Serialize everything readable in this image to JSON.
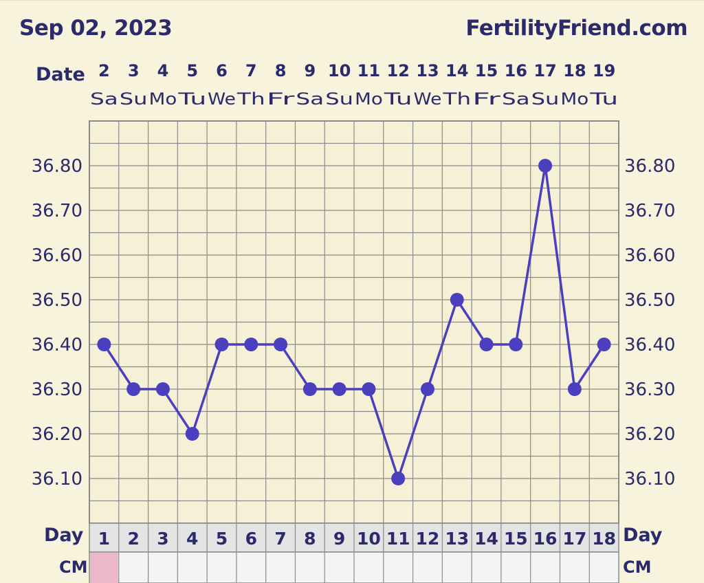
{
  "header": {
    "date": "Sep 02, 2023",
    "site": "FertilityFriend.com"
  },
  "labels": {
    "date_row": "Date",
    "day_row_left": "Day",
    "day_row_right": "Day",
    "cm_row_left": "CM",
    "cm_row_right": "CM"
  },
  "colors": {
    "background": "#f7f3dc",
    "grid": "#8a8a8a",
    "line": "#4a3fbf",
    "text": "#2b2a6b",
    "day_cell": "#e4e4e4",
    "cm_cell": "#f4f4f4",
    "cm_highlight": "#eab8c8"
  },
  "chart_data": {
    "type": "line",
    "dates": [
      "2",
      "3",
      "4",
      "5",
      "6",
      "7",
      "8",
      "9",
      "10",
      "11",
      "12",
      "13",
      "14",
      "15",
      "16",
      "17",
      "18",
      "19"
    ],
    "weekdays": [
      "Sa",
      "Su",
      "Mo",
      "Tu",
      "We",
      "Th",
      "Fr",
      "Sa",
      "Su",
      "Mo",
      "Tu",
      "We",
      "Th",
      "Fr",
      "Sa",
      "Su",
      "Mo",
      "Tu"
    ],
    "cycle_days": [
      "1",
      "2",
      "3",
      "4",
      "5",
      "6",
      "7",
      "8",
      "9",
      "10",
      "11",
      "12",
      "13",
      "14",
      "15",
      "16",
      "17",
      "18"
    ],
    "series": [
      {
        "values": [
          36.4,
          36.3,
          36.3,
          36.2,
          36.4,
          36.4,
          36.4,
          36.3,
          36.3,
          36.3,
          36.1,
          36.3,
          36.5,
          36.4,
          36.4,
          36.8,
          36.3,
          36.4
        ]
      }
    ],
    "y_ticks": [
      "36.80",
      "36.70",
      "36.60",
      "36.50",
      "36.40",
      "36.30",
      "36.20",
      "36.10"
    ],
    "ylim": [
      36.0,
      36.9
    ],
    "grid": true,
    "cm_highlight_days": [
      1
    ]
  }
}
